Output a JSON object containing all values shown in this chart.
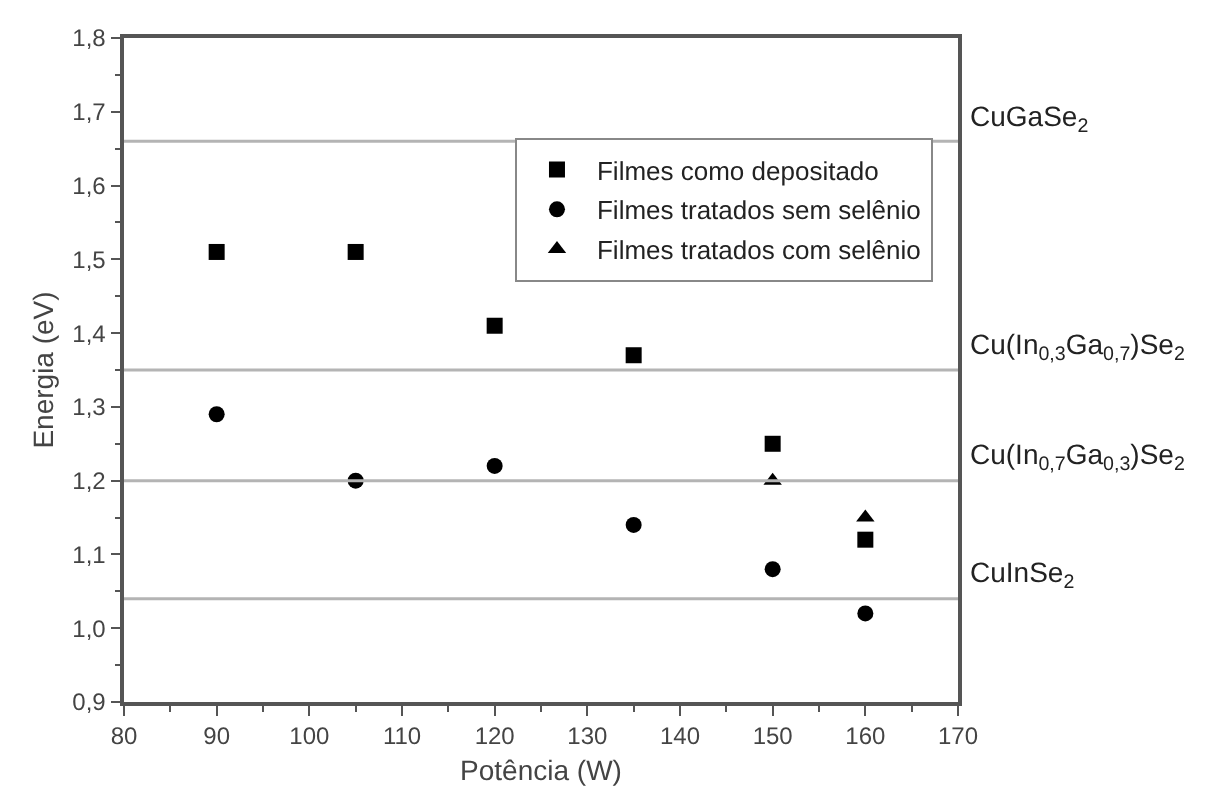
{
  "chart_data": {
    "type": "scatter",
    "xlabel": "Potência (W)",
    "ylabel": "Energia (eV)",
    "x": [
      90,
      105,
      120,
      135,
      150,
      160
    ],
    "series": [
      {
        "name": "Filmes como depositado",
        "color": "#000000",
        "marker": "square",
        "values": [
          1.51,
          1.51,
          1.41,
          1.37,
          1.25,
          1.12
        ]
      },
      {
        "name": "Filmes tratados sem selênio",
        "color": "#000000",
        "marker": "circle",
        "values": [
          1.29,
          1.2,
          1.22,
          1.14,
          1.08,
          1.02
        ]
      },
      {
        "name": "Filmes tratados com selênio",
        "color": "#000000",
        "marker": "triangle",
        "x": [
          150,
          160
        ],
        "values": [
          1.2,
          1.15
        ]
      }
    ],
    "xlim": [
      80,
      170
    ],
    "xticks": [
      80,
      90,
      100,
      110,
      120,
      130,
      140,
      150,
      160,
      170
    ],
    "ylim": [
      0.9,
      1.8
    ],
    "yticks": [
      {
        "value": 0.9,
        "label": "0,9"
      },
      {
        "value": 1.0,
        "label": "1,0"
      },
      {
        "value": 1.1,
        "label": "1,1"
      },
      {
        "value": 1.2,
        "label": "1,2"
      },
      {
        "value": 1.3,
        "label": "1,3"
      },
      {
        "value": 1.4,
        "label": "1,4"
      },
      {
        "value": 1.5,
        "label": "1,5"
      },
      {
        "value": 1.6,
        "label": "1,6"
      },
      {
        "value": 1.7,
        "label": "1,7"
      },
      {
        "value": 1.8,
        "label": "1,8"
      }
    ],
    "ref_lines": [
      {
        "axis": "y",
        "value": 1.66,
        "label": "CuGaSe$_{2}$",
        "color": "#b4b4b4"
      },
      {
        "axis": "y",
        "value": 1.35,
        "label": "Cu(In$_{0,3}$Ga$_{0,7}$)Se$_{2}$",
        "color": "#b4b4b4"
      },
      {
        "axis": "y",
        "value": 1.2,
        "label": "Cu(In$_{0,7}$Ga$_{0,3}$)Se$_{2}$",
        "color": "#b4b4b4"
      },
      {
        "axis": "y",
        "value": 1.04,
        "label": "CuInSe$_{2}$",
        "color": "#b4b4b4"
      }
    ],
    "grid": false,
    "legend": "top right"
  }
}
